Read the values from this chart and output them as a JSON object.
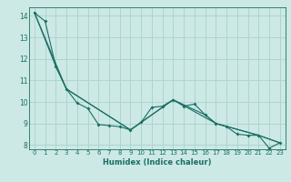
{
  "xlabel": "Humidex (Indice chaleur)",
  "bg_color": "#cce9e5",
  "grid_color": "#b0d4d0",
  "line_color": "#1a6e64",
  "xlim": [
    -0.5,
    23.5
  ],
  "ylim": [
    7.8,
    14.4
  ],
  "yticks": [
    8,
    9,
    10,
    11,
    12,
    13,
    14
  ],
  "xticks": [
    0,
    1,
    2,
    3,
    4,
    5,
    6,
    7,
    8,
    9,
    10,
    11,
    12,
    13,
    14,
    15,
    16,
    17,
    18,
    19,
    20,
    21,
    22,
    23
  ],
  "series1": [
    [
      0,
      14.15
    ],
    [
      1,
      13.75
    ],
    [
      2,
      11.65
    ],
    [
      3,
      10.6
    ],
    [
      4,
      9.95
    ],
    [
      5,
      9.7
    ],
    [
      6,
      8.95
    ],
    [
      7,
      8.9
    ],
    [
      8,
      8.85
    ],
    [
      9,
      8.7
    ],
    [
      10,
      9.05
    ],
    [
      11,
      9.75
    ],
    [
      12,
      9.8
    ],
    [
      13,
      10.1
    ],
    [
      14,
      9.8
    ],
    [
      15,
      9.9
    ],
    [
      16,
      9.4
    ],
    [
      17,
      9.0
    ],
    [
      18,
      8.85
    ],
    [
      19,
      8.5
    ],
    [
      20,
      8.45
    ],
    [
      21,
      8.45
    ],
    [
      22,
      7.85
    ],
    [
      23,
      8.1
    ]
  ],
  "series2": [
    [
      0,
      14.15
    ],
    [
      2,
      11.65
    ],
    [
      3,
      10.6
    ],
    [
      9,
      8.7
    ],
    [
      10,
      9.05
    ],
    [
      13,
      10.1
    ],
    [
      16,
      9.4
    ],
    [
      17,
      9.0
    ],
    [
      21,
      8.45
    ],
    [
      23,
      8.1
    ]
  ],
  "series3": [
    [
      0,
      14.15
    ],
    [
      3,
      10.6
    ],
    [
      9,
      8.7
    ],
    [
      13,
      10.1
    ],
    [
      17,
      9.0
    ],
    [
      21,
      8.45
    ],
    [
      23,
      8.1
    ]
  ]
}
